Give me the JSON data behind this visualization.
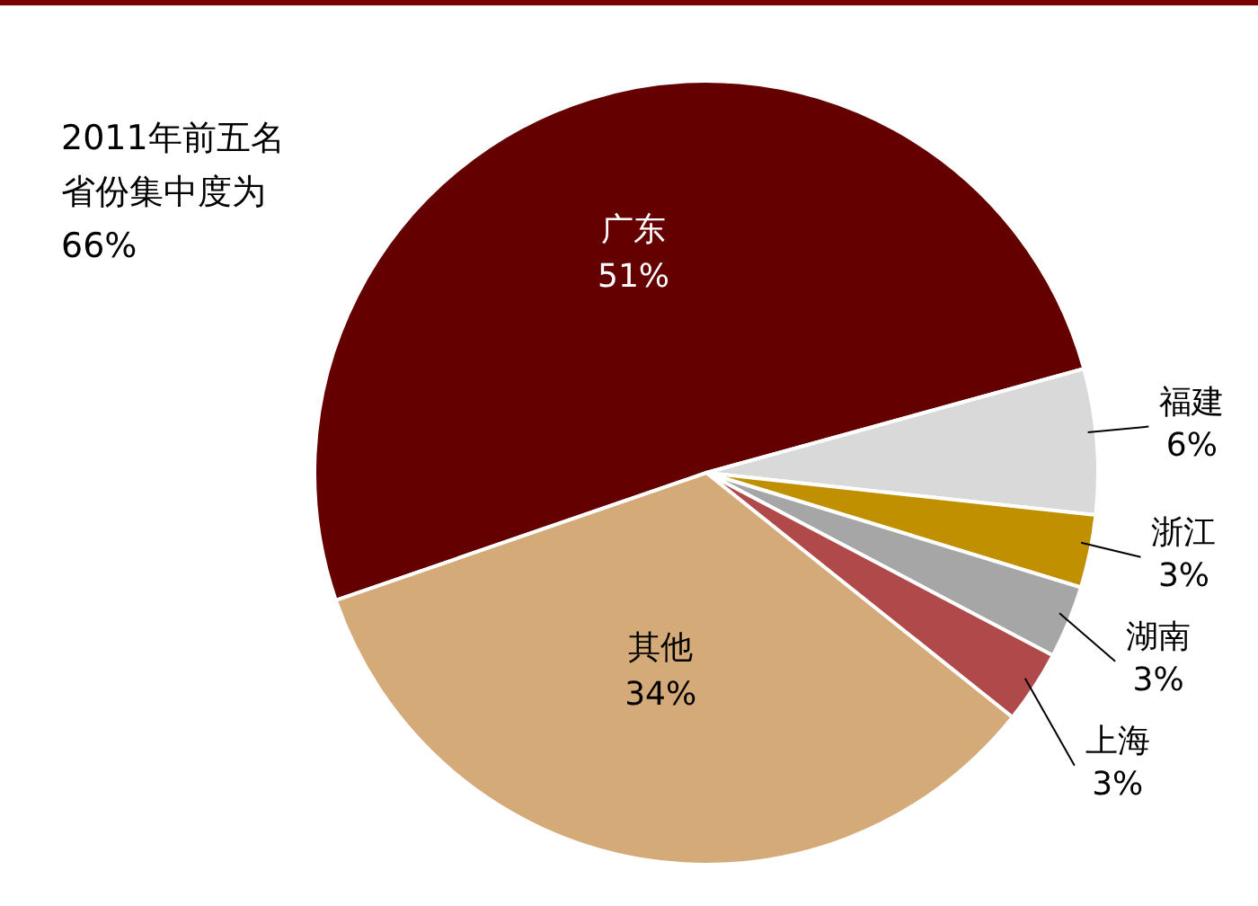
{
  "chart_data": {
    "type": "pie",
    "categories": [
      "广东",
      "福建",
      "浙江",
      "湖南",
      "上海",
      "其他"
    ],
    "values": [
      51,
      6,
      3,
      3,
      3,
      34
    ],
    "value_labels": [
      "51%",
      "6%",
      "3%",
      "3%",
      "3%",
      "34%"
    ],
    "colors": [
      "#640000",
      "#d9d9d9",
      "#c09000",
      "#a6a6a6",
      "#b04a4a",
      "#d4aa78"
    ],
    "annotations": [
      "2011年前五名省份集中度为66%"
    ],
    "legend": false
  }
}
